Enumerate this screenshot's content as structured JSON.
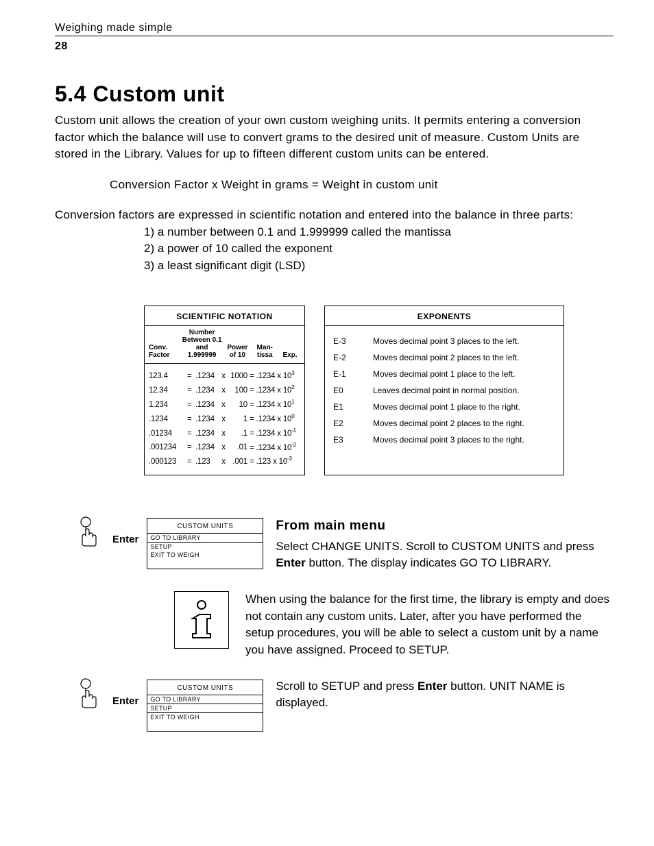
{
  "header": "Weighing made simple",
  "pagenum": "28",
  "section_title": "5.4  Custom unit",
  "intro": "Custom unit allows the creation of your own custom weighing units. It permits entering a conversion factor which the balance will use to convert grams to the desired unit of measure. Custom Units are stored in the Library. Values for up to fifteen different custom units can be entered.",
  "formula": "Conversion Factor x Weight in grams = Weight in custom unit",
  "lead2": "Conversion factors are expressed in scientific notation and entered into the balance in three parts:",
  "list": {
    "i1": "1) a number between 0.1 and 1.999999 called the mantissa",
    "i2": "2) a power of 10 called the exponent",
    "i3": "3) a least significant digit (LSD)"
  },
  "scinot": {
    "title": "SCIENTIFIC NOTATION",
    "headers": {
      "c1": "Conv. Factor",
      "c2": "Number Between 0.1 and 1.999999",
      "c3": "Power of 10",
      "c4": "Man- tissa",
      "c5": "Exp."
    },
    "rows": [
      {
        "cf": "123.4",
        "mb": ".1234",
        "pw": "1000",
        "mt": ".1234",
        "ex": "3"
      },
      {
        "cf": "12.34",
        "mb": ".1234",
        "pw": "100",
        "mt": ".1234",
        "ex": "2"
      },
      {
        "cf": "1.234",
        "mb": ".1234",
        "pw": "10",
        "mt": ".1234",
        "ex": "1"
      },
      {
        "cf": ".1234",
        "mb": ".1234",
        "pw": "1",
        "mt": ".1234",
        "ex": "0"
      },
      {
        "cf": ".01234",
        "mb": ".1234",
        "pw": ".1",
        "mt": ".1234",
        "ex": "-1"
      },
      {
        "cf": ".001234",
        "mb": ".1234",
        "pw": ".01",
        "mt": ".1234",
        "ex": "-2"
      },
      {
        "cf": ".000123",
        "mb": ".123",
        "pw": ".001",
        "mt": ".123",
        "ex": "-3"
      }
    ]
  },
  "exponents": {
    "title": "EXPONENTS",
    "rows": [
      {
        "e": "E-3",
        "d": "Moves decimal point 3 places to the left."
      },
      {
        "e": "E-2",
        "d": "Moves decimal point 2 places to the left."
      },
      {
        "e": "E-1",
        "d": "Moves decimal point 1 place to the left."
      },
      {
        "e": "E0",
        "d": "Leaves decimal point in normal position."
      },
      {
        "e": "E1",
        "d": "Moves decimal point 1 place to the right."
      },
      {
        "e": "E2",
        "d": "Moves decimal point 2 places to the right."
      },
      {
        "e": "E3",
        "d": "Moves decimal point 3 places to the right."
      }
    ]
  },
  "enter_label": "Enter",
  "subhead": "From main menu",
  "step1_a": "Select CHANGE UNITS. Scroll to CUSTOM UNITS and press ",
  "step1_bold": "Enter",
  "step1_b": " button. The display indicates GO TO LIBRARY.",
  "step2": "When using the balance for the first time, the library is empty and does not contain any custom units. Later, after you have performed the setup procedures, you will be able to select a custom unit by a name you have assigned. Proceed to SETUP.",
  "step3_a": "Scroll to SETUP and press ",
  "step3_bold": "Enter",
  "step3_b": " button. UNIT NAME is displayed.",
  "lcd": {
    "title": "CUSTOM  UNITS",
    "l1": "GO TO LIBRARY",
    "l2": "SETUP",
    "l3": "EXIT TO WEIGH"
  }
}
